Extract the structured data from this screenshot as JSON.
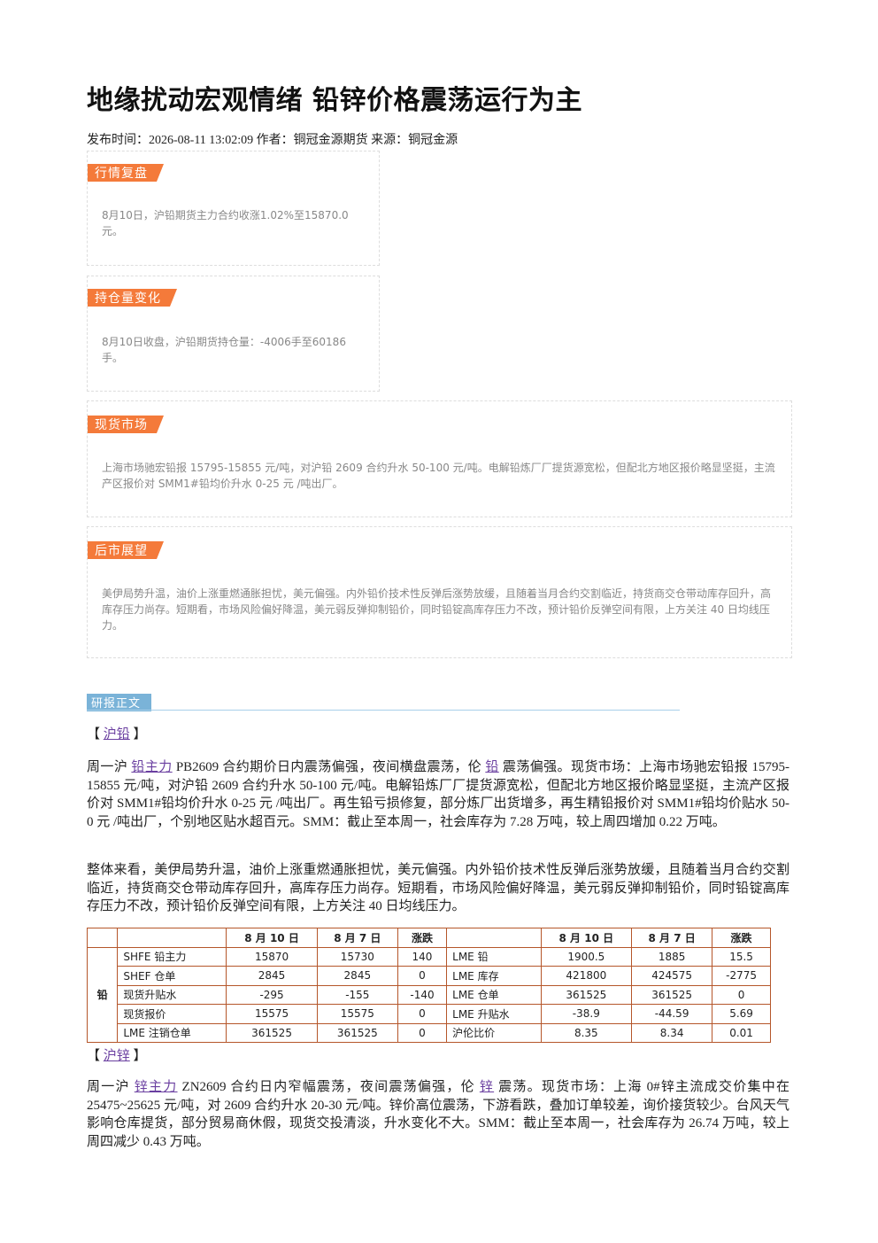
{
  "header": {
    "title": "地缘扰动宏观情绪 铅锌价格震荡运行为主",
    "meta": "发布时间：2026-08-11 13:02:09 作者：铜冠金源期货 来源：铜冠金源"
  },
  "boxes": [
    {
      "label": "行情复盘",
      "text": "8月10日，沪铅期货主力合约收涨1.02%至15870.0元。"
    },
    {
      "label": "持仓量变化",
      "text": "8月10日收盘，沪铅期货持仓量：-4006手至60186手。"
    },
    {
      "label": "现货市场",
      "text": "上海市场驰宏铅报 15795-15855 元/吨，对沪铅 2609 合约升水 50-100 元/吨。电解铅炼厂厂提货源宽松，但配北方地区报价略显坚挺，主流产区报价对 SMM1#铅均价升水 0-25 元 /吨出厂。"
    },
    {
      "label": "后市展望",
      "text": "美伊局势升温，油价上涨重燃通胀担忧，美元偏强。内外铅价技术性反弹后涨势放缓，且随着当月合约交割临近，持货商交仓带动库存回升，高库存压力尚存。短期看，市场风险偏好降温，美元弱反弹抑制铅价，同时铅锭高库存压力不改，预计铅价反弹空间有限，上方关注 40 日均线压力。"
    }
  ],
  "report": {
    "label": "研报正文",
    "lead": {
      "heading": {
        "open": "【",
        "link": "沪铅",
        "close": "】"
      },
      "p1": {
        "a": "周一沪 ",
        "link1": "铅主力",
        "b": " PB2609 合约期价日内震荡偏强，夜间横盘震荡，伦 ",
        "link2": "铅",
        "c": " 震荡偏强。现货市场：上海市场驰宏铅报 15795-15855 元/吨，对沪铅 2609 合约升水 50-100 元/吨。电解铅炼厂厂提货源宽松，但配北方地区报价略显坚挺，主流产区报价对 SMM1#铅均价升水 0-25 元 /吨出厂。再生铅亏损修复，部分炼厂出货增多，再生精铅报价对 SMM1#铅均价贴水 50-0 元 /吨出厂，个别地区贴水超百元。SMM：截止至本周一，社会库存为 7.28 万吨，较上周四增加 0.22 万吨。"
      },
      "p2": "整体来看，美伊局势升温，油价上涨重燃通胀担忧，美元偏强。内外铅价技术性反弹后涨势放缓，且随着当月合约交割临近，持货商交仓带动库存回升，高库存压力尚存。短期看，市场风险偏好降温，美元弱反弹抑制铅价，同时铅锭高库存压力不改，预计铅价反弹空间有限，上方关注 40 日均线压力。"
    },
    "table": {
      "group": "铅",
      "header_left": [
        "8 月 10 日",
        "8 月 7 日",
        "涨跌"
      ],
      "header_right": [
        "8 月 10 日",
        "8 月 7 日",
        "涨跌"
      ],
      "rows": [
        [
          "SHFE 铅主力",
          "15870",
          "15730",
          "140",
          "LME 铅",
          "1900.5",
          "1885",
          "15.5"
        ],
        [
          "SHEF 仓单",
          "2845",
          "2845",
          "0",
          "LME 库存",
          "421800",
          "424575",
          "-2775"
        ],
        [
          "现货升贴水",
          "-295",
          "-155",
          "-140",
          "LME 仓单",
          "361525",
          "361525",
          "0"
        ],
        [
          "现货报价",
          "15575",
          "15575",
          "0",
          "LME 升贴水",
          "-38.9",
          "-44.59",
          "5.69"
        ],
        [
          "LME 注销仓单",
          "361525",
          "361525",
          "0",
          "沪伦比价",
          "8.35",
          "8.34",
          "0.01"
        ]
      ]
    },
    "zinc": {
      "heading": {
        "open": "【",
        "link": "沪锌",
        "close": "】"
      },
      "p1": {
        "a": "周一沪 ",
        "link1": "锌主力",
        "b": " ZN2609 合约日内窄幅震荡，夜间震荡偏强，伦 ",
        "link2": "锌",
        "c": " 震荡。现货市场：上海 0#锌主流成交价集中在 25475~25625 元/吨，对 2609 合约升水 20-30 元/吨。锌价高位震荡，下游看跌，叠加订单较差，询价接货较少。台风天气影响仓库提货，部分贸易商休假，现货交投清淡，升水变化不大。SMM：截止至本周一，社会库存为 26.74 万吨，较上周四减少 0.43 万吨。"
      }
    }
  }
}
